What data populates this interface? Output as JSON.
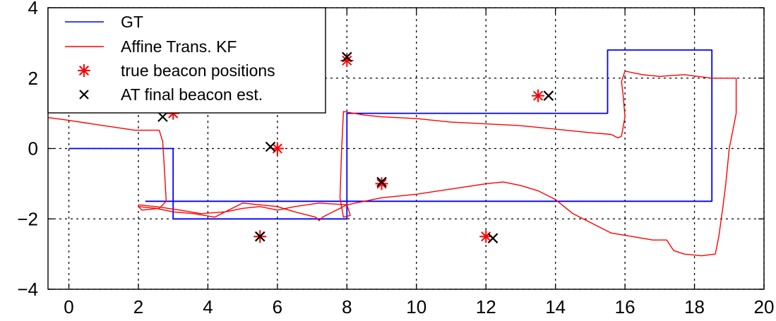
{
  "chart_data": {
    "type": "line",
    "title": "",
    "xlabel": "",
    "ylabel": "",
    "xlim": [
      -0.6,
      20
    ],
    "ylim": [
      -4,
      4
    ],
    "xticks": [
      0,
      2,
      4,
      6,
      8,
      10,
      12,
      14,
      16,
      18,
      20
    ],
    "yticks": [
      -4,
      -2,
      0,
      2,
      4
    ],
    "xtick_labels": [
      "0",
      "2",
      "4",
      "6",
      "8",
      "10",
      "12",
      "14",
      "16",
      "18",
      "20"
    ],
    "ytick_labels": [
      "−4",
      "−2",
      "0",
      "2",
      "4"
    ],
    "grid": true,
    "legend_position": "top-left",
    "legend": [
      {
        "label": "GT",
        "marker": "line",
        "color": "#0000ff"
      },
      {
        "label": "Affine Trans. KF",
        "marker": "line",
        "color": "#ff0000"
      },
      {
        "label": "true beacon positions",
        "marker": "*",
        "color": "#ff0000"
      },
      {
        "label": "AT final beacon est.",
        "marker": "x",
        "color": "#000000"
      }
    ],
    "series": [
      {
        "name": "GT",
        "style": "line",
        "color": "#0000ff",
        "points": [
          [
            0,
            0
          ],
          [
            3,
            0
          ],
          [
            3,
            -2
          ],
          [
            8,
            -2
          ],
          [
            8,
            1
          ],
          [
            15.5,
            1
          ],
          [
            15.5,
            2.8
          ],
          [
            18.5,
            2.8
          ],
          [
            18.5,
            -1.5
          ],
          [
            2.2,
            -1.5
          ]
        ]
      },
      {
        "name": "Affine Trans. KF",
        "style": "line",
        "color": "#ff0000",
        "points": [
          [
            -0.6,
            0.88
          ],
          [
            0,
            0.8
          ],
          [
            1,
            0.65
          ],
          [
            1.9,
            0.52
          ],
          [
            2.6,
            0.52
          ],
          [
            2.7,
            0.2
          ],
          [
            2.75,
            -0.6
          ],
          [
            2.8,
            -1.5
          ],
          [
            2.6,
            -1.7
          ],
          [
            2.1,
            -1.75
          ],
          [
            2,
            -1.65
          ],
          [
            2.5,
            -1.7
          ],
          [
            3,
            -1.8
          ],
          [
            3.6,
            -1.85
          ],
          [
            4.2,
            -1.95
          ],
          [
            4.5,
            -1.8
          ],
          [
            5,
            -1.55
          ],
          [
            5.5,
            -1.6
          ],
          [
            6,
            -1.65
          ],
          [
            6.5,
            -1.8
          ],
          [
            7.1,
            -1.95
          ],
          [
            7.2,
            -2.05
          ],
          [
            7.3,
            -1.95
          ],
          [
            7.6,
            -1.8
          ],
          [
            8,
            -1.6
          ],
          [
            8.1,
            -1.9
          ],
          [
            7.9,
            -1.95
          ],
          [
            7.8,
            -1.4
          ],
          [
            7.85,
            0
          ],
          [
            7.9,
            1.05
          ],
          [
            8.5,
            0.95
          ],
          [
            9,
            0.9
          ],
          [
            10,
            0.85
          ],
          [
            11,
            0.75
          ],
          [
            12,
            0.7
          ],
          [
            13,
            0.65
          ],
          [
            14,
            0.55
          ],
          [
            15,
            0.45
          ],
          [
            15.6,
            0.4
          ],
          [
            15.8,
            0.3
          ],
          [
            15.9,
            0.35
          ],
          [
            16,
            0.9
          ],
          [
            15.95,
            1.5
          ],
          [
            15.9,
            1.9
          ],
          [
            16,
            2.2
          ],
          [
            16.5,
            2.1
          ],
          [
            17,
            2.05
          ],
          [
            17.7,
            2.1
          ],
          [
            18.5,
            2
          ],
          [
            19.2,
            2
          ],
          [
            19.2,
            1
          ],
          [
            19,
            0
          ],
          [
            18.9,
            -1
          ],
          [
            18.8,
            -1.8
          ],
          [
            18.7,
            -2.5
          ],
          [
            18.6,
            -3
          ],
          [
            18.2,
            -3.05
          ],
          [
            17.7,
            -3
          ],
          [
            17.4,
            -2.9
          ],
          [
            17.2,
            -2.6
          ],
          [
            16.8,
            -2.6
          ],
          [
            16.2,
            -2.5
          ],
          [
            15.6,
            -2.4
          ],
          [
            15,
            -2.1
          ],
          [
            14.5,
            -1.85
          ],
          [
            14,
            -1.45
          ],
          [
            13.5,
            -1.2
          ],
          [
            13,
            -1.05
          ],
          [
            12.5,
            -0.95
          ],
          [
            12,
            -1.0
          ],
          [
            11,
            -1.15
          ],
          [
            10,
            -1.3
          ],
          [
            9,
            -1.4
          ],
          [
            8.5,
            -1.5
          ],
          [
            8,
            -1.6
          ],
          [
            7.2,
            -1.55
          ],
          [
            6.5,
            -1.65
          ],
          [
            6,
            -1.75
          ],
          [
            5.5,
            -1.65
          ],
          [
            5,
            -1.7
          ],
          [
            4.5,
            -1.8
          ],
          [
            3.8,
            -1.85
          ],
          [
            3.2,
            -1.75
          ],
          [
            2.5,
            -1.65
          ],
          [
            2,
            -1.6
          ]
        ]
      },
      {
        "name": "true beacon positions",
        "style": "marker-star",
        "color": "#ff0000",
        "points": [
          [
            3,
            1
          ],
          [
            8,
            2.5
          ],
          [
            13.5,
            1.5
          ],
          [
            6,
            0
          ],
          [
            9,
            -1
          ],
          [
            5.5,
            -2.5
          ],
          [
            12,
            -2.5
          ]
        ]
      },
      {
        "name": "AT final beacon est.",
        "style": "marker-x",
        "color": "#000000",
        "points": [
          [
            2.7,
            0.9
          ],
          [
            8,
            2.6
          ],
          [
            13.8,
            1.5
          ],
          [
            5.8,
            0.05
          ],
          [
            9,
            -0.95
          ],
          [
            5.5,
            -2.5
          ],
          [
            12.2,
            -2.55
          ]
        ]
      }
    ]
  }
}
